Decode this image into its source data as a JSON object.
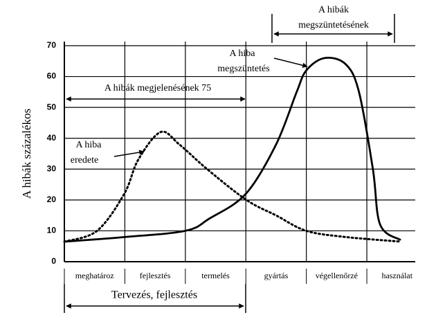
{
  "chart_data": {
    "type": "line",
    "y_label": "A hibák százalékos",
    "categories": [
      "meghatároz",
      "fejlesztés",
      "termelés",
      "gyártás",
      "végellenőrzé",
      "használat"
    ],
    "ylim": [
      0,
      70
    ],
    "yticks": [
      0,
      10,
      20,
      30,
      40,
      50,
      60,
      70
    ],
    "xlim": [
      0,
      5.8
    ],
    "grid": true,
    "series": [
      {
        "color": "#000000",
        "line_style": "dotted",
        "x": [
          0,
          0.54,
          0.99,
          1.22,
          1.59,
          1.9,
          2.36,
          3.01,
          3.5,
          4.0,
          4.65,
          5.56
        ],
        "values": [
          6.5,
          10,
          22,
          33,
          42,
          38,
          30,
          20,
          15,
          10,
          8,
          6.5
        ]
      },
      {
        "color": "#000000",
        "line_style": "solid",
        "x": [
          0,
          1,
          2,
          2.4,
          3,
          3.5,
          3.84,
          4,
          4.3,
          4.65,
          4.87,
          5.1,
          5.22,
          5.56
        ],
        "values": [
          6.5,
          8,
          10,
          14,
          22,
          38,
          55,
          62,
          66,
          64,
          55,
          30,
          12,
          7
        ]
      }
    ],
    "annotations": [
      {
        "lines": [
          "A hibák",
          "megszüntetésének"
        ]
      },
      {
        "lines": [
          "A hibák megjelenésének 75"
        ]
      },
      {
        "lines": [
          "A hiba",
          "megszüntetés"
        ]
      },
      {
        "lines": [
          "A hiba",
          "eredete"
        ]
      },
      {
        "lines": [
          "Tervezés, fejlesztés"
        ]
      }
    ]
  }
}
